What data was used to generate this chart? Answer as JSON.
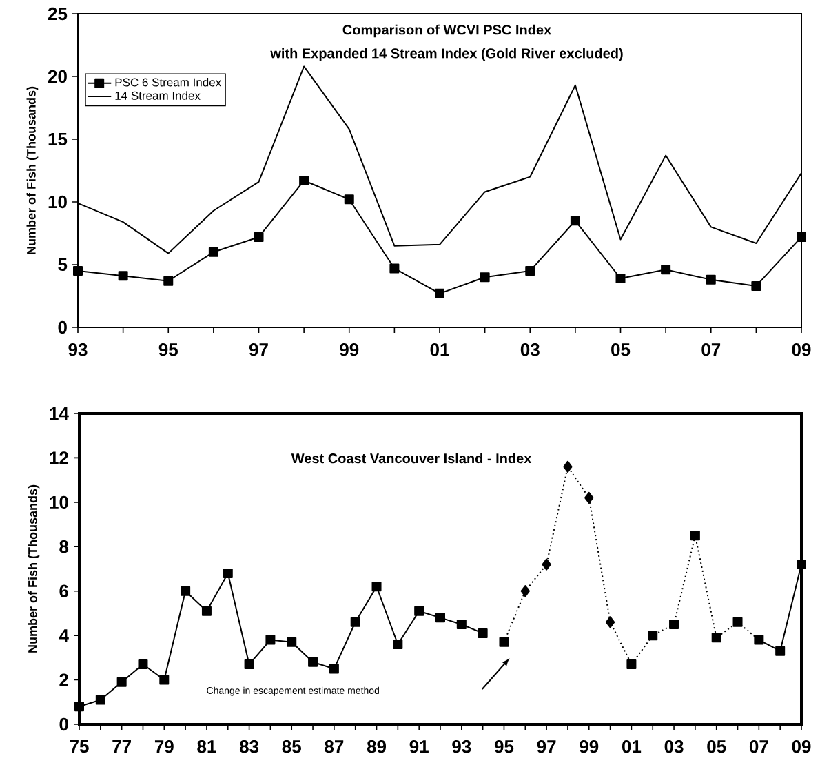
{
  "chart_data": [
    {
      "type": "line",
      "title": "Comparison of WCVI PSC Index",
      "subtitle": "with Expanded 14 Stream Index (Gold River excluded)",
      "ylabel": "Number of Fish (Thousands)",
      "categories": [
        "93",
        null,
        "95",
        null,
        "97",
        null,
        "99",
        null,
        "01",
        null,
        "03",
        null,
        "05",
        null,
        "07",
        null,
        "09"
      ],
      "ylim": [
        0,
        25
      ],
      "yticks": [
        0,
        5,
        10,
        15,
        20,
        25
      ],
      "legend": "top left",
      "grid": false,
      "series": [
        {
          "name": "PSC 6 Stream Index",
          "type": "line",
          "color": "#000000",
          "marker": "square",
          "line_style": "solid",
          "values": [
            4.5,
            4.1,
            3.7,
            6.0,
            7.2,
            11.7,
            10.2,
            4.7,
            2.7,
            4.0,
            4.5,
            8.5,
            3.9,
            4.6,
            3.8,
            3.3,
            7.2
          ]
        },
        {
          "name": "14 Stream Index",
          "type": "line",
          "color": "#000000",
          "marker": "none",
          "line_style": "solid",
          "values": [
            9.9,
            8.4,
            5.9,
            9.3,
            11.6,
            20.8,
            15.8,
            6.5,
            6.6,
            10.8,
            12.0,
            19.3,
            7.0,
            13.7,
            8.0,
            6.7,
            12.3
          ]
        }
      ]
    },
    {
      "type": "line",
      "title": "West Coast Vancouver Island - Index",
      "ylabel": "Number of Fish (Thousands)",
      "categories": [
        "75",
        null,
        "77",
        null,
        "79",
        null,
        "81",
        null,
        "83",
        null,
        "85",
        null,
        "87",
        null,
        "89",
        null,
        "91",
        null,
        "93",
        null,
        "95",
        null,
        "97",
        null,
        "99",
        null,
        "01",
        null,
        "03",
        null,
        "05",
        null,
        "07",
        null,
        "09"
      ],
      "ylim": [
        0,
        14
      ],
      "yticks": [
        0,
        2,
        4,
        6,
        8,
        10,
        12,
        14
      ],
      "grid": false,
      "annotations": [
        "Change in escapement estimate method"
      ],
      "series": [
        {
          "type": "line",
          "color": "#000000",
          "marker": "square",
          "line_style": "solid",
          "values": [
            0.8,
            1.1,
            1.9,
            2.7,
            2.0,
            6.0,
            5.1,
            6.8,
            2.7,
            3.8,
            3.7,
            2.8,
            2.5,
            4.6,
            6.2,
            3.6,
            5.1,
            4.8,
            4.5,
            4.1,
            null,
            null,
            null,
            null,
            null,
            null,
            null,
            null,
            null,
            null,
            null,
            null,
            3.8,
            3.3,
            7.2
          ]
        },
        {
          "type": "line",
          "color": "#000000",
          "marker": "none",
          "line_style": "dotted",
          "values": [
            null,
            null,
            null,
            null,
            null,
            null,
            null,
            null,
            null,
            null,
            null,
            null,
            null,
            null,
            null,
            null,
            null,
            null,
            null,
            null,
            3.7,
            6.0,
            7.2,
            11.6,
            10.2,
            4.6,
            2.7,
            4.0,
            4.5,
            8.5,
            3.9,
            4.6,
            3.8,
            null,
            null
          ]
        },
        {
          "type": "scatter",
          "color": "#000000",
          "marker": "square",
          "values": [
            null,
            null,
            null,
            null,
            null,
            null,
            null,
            null,
            null,
            null,
            null,
            null,
            null,
            null,
            null,
            null,
            null,
            null,
            null,
            null,
            3.7,
            null,
            null,
            null,
            null,
            null,
            2.7,
            4.0,
            4.5,
            8.5,
            3.9,
            4.6,
            null,
            null,
            null
          ]
        },
        {
          "type": "scatter",
          "color": "#000000",
          "marker": "diamond",
          "values": [
            null,
            null,
            null,
            null,
            null,
            null,
            null,
            null,
            null,
            null,
            null,
            null,
            null,
            null,
            null,
            null,
            null,
            null,
            null,
            null,
            null,
            6.0,
            7.2,
            11.6,
            10.2,
            4.6,
            null,
            null,
            null,
            null,
            null,
            null,
            null,
            null,
            null
          ]
        }
      ]
    }
  ]
}
